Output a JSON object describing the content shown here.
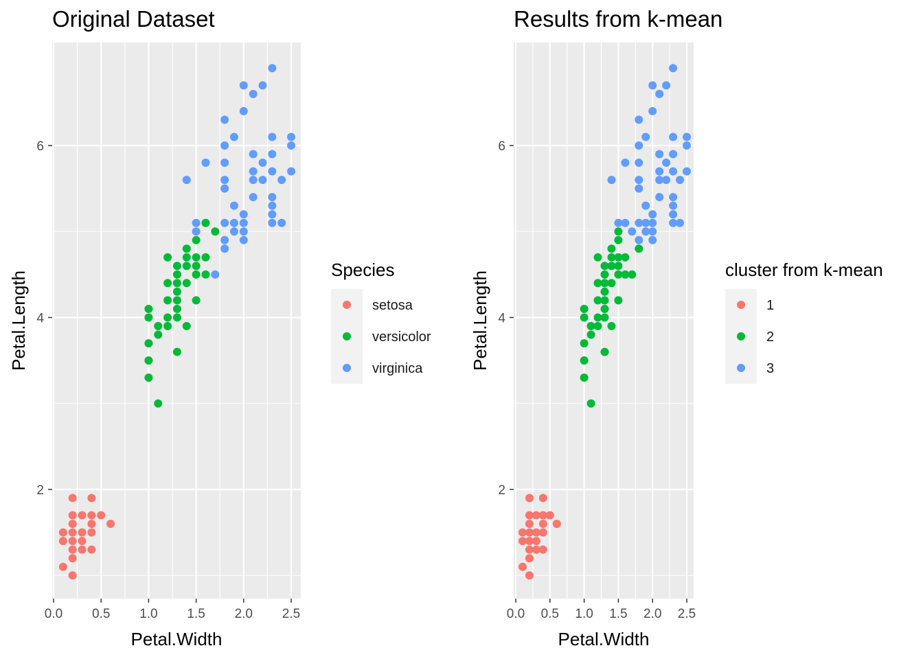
{
  "chart_data": [
    {
      "type": "scatter",
      "title": "Original Dataset",
      "xlabel": "Petal.Width",
      "ylabel": "Petal.Length",
      "xlim": [
        0.0,
        2.5
      ],
      "ylim": [
        1.0,
        6.9
      ],
      "xticks": [
        "0.0",
        "0.5",
        "1.0",
        "1.5",
        "2.0",
        "2.5"
      ],
      "yticks": [
        "2",
        "4",
        "6"
      ],
      "grid": true,
      "legend": {
        "title": "Species",
        "position": "right",
        "entries": [
          {
            "label": "setosa",
            "color": "#F8766D"
          },
          {
            "label": "versicolor",
            "color": "#00BA38"
          },
          {
            "label": "virginica",
            "color": "#619CFF"
          }
        ]
      },
      "series": [
        {
          "name": "setosa",
          "color": "#F8766D",
          "points": [
            [
              0.1,
              1.1
            ],
            [
              0.1,
              1.4
            ],
            [
              0.1,
              1.5
            ],
            [
              0.2,
              1.0
            ],
            [
              0.2,
              1.2
            ],
            [
              0.2,
              1.3
            ],
            [
              0.2,
              1.4
            ],
            [
              0.2,
              1.5
            ],
            [
              0.2,
              1.6
            ],
            [
              0.2,
              1.7
            ],
            [
              0.2,
              1.9
            ],
            [
              0.3,
              1.3
            ],
            [
              0.3,
              1.4
            ],
            [
              0.3,
              1.5
            ],
            [
              0.3,
              1.7
            ],
            [
              0.4,
              1.3
            ],
            [
              0.4,
              1.5
            ],
            [
              0.4,
              1.6
            ],
            [
              0.4,
              1.7
            ],
            [
              0.4,
              1.9
            ],
            [
              0.5,
              1.7
            ],
            [
              0.6,
              1.6
            ]
          ]
        },
        {
          "name": "versicolor",
          "color": "#00BA38",
          "points": [
            [
              1.0,
              3.3
            ],
            [
              1.0,
              3.5
            ],
            [
              1.0,
              3.7
            ],
            [
              1.0,
              4.0
            ],
            [
              1.0,
              4.1
            ],
            [
              1.1,
              3.0
            ],
            [
              1.1,
              3.8
            ],
            [
              1.1,
              3.9
            ],
            [
              1.2,
              3.9
            ],
            [
              1.2,
              4.0
            ],
            [
              1.2,
              4.2
            ],
            [
              1.2,
              4.4
            ],
            [
              1.2,
              4.7
            ],
            [
              1.3,
              3.6
            ],
            [
              1.3,
              4.0
            ],
            [
              1.3,
              4.1
            ],
            [
              1.3,
              4.2
            ],
            [
              1.3,
              4.3
            ],
            [
              1.3,
              4.4
            ],
            [
              1.3,
              4.5
            ],
            [
              1.3,
              4.6
            ],
            [
              1.4,
              3.9
            ],
            [
              1.4,
              4.4
            ],
            [
              1.4,
              4.6
            ],
            [
              1.4,
              4.7
            ],
            [
              1.4,
              4.8
            ],
            [
              1.5,
              4.2
            ],
            [
              1.5,
              4.5
            ],
            [
              1.5,
              4.6
            ],
            [
              1.5,
              4.7
            ],
            [
              1.5,
              4.9
            ],
            [
              1.6,
              4.5
            ],
            [
              1.6,
              4.7
            ],
            [
              1.6,
              5.1
            ],
            [
              1.7,
              5.0
            ]
          ]
        },
        {
          "name": "virginica",
          "color": "#619CFF",
          "points": [
            [
              1.4,
              5.6
            ],
            [
              1.5,
              5.0
            ],
            [
              1.5,
              5.1
            ],
            [
              1.6,
              5.8
            ],
            [
              1.7,
              4.5
            ],
            [
              1.8,
              4.8
            ],
            [
              1.8,
              4.9
            ],
            [
              1.8,
              5.1
            ],
            [
              1.8,
              5.5
            ],
            [
              1.8,
              5.6
            ],
            [
              1.8,
              5.8
            ],
            [
              1.8,
              6.0
            ],
            [
              1.8,
              6.3
            ],
            [
              1.9,
              5.0
            ],
            [
              1.9,
              5.1
            ],
            [
              1.9,
              5.3
            ],
            [
              1.9,
              6.1
            ],
            [
              2.0,
              4.9
            ],
            [
              2.0,
              5.0
            ],
            [
              2.0,
              5.1
            ],
            [
              2.0,
              5.2
            ],
            [
              2.0,
              6.4
            ],
            [
              2.0,
              6.7
            ],
            [
              2.1,
              5.4
            ],
            [
              2.1,
              5.6
            ],
            [
              2.1,
              5.7
            ],
            [
              2.1,
              5.9
            ],
            [
              2.1,
              6.6
            ],
            [
              2.2,
              5.6
            ],
            [
              2.2,
              5.8
            ],
            [
              2.2,
              6.7
            ],
            [
              2.3,
              5.1
            ],
            [
              2.3,
              5.2
            ],
            [
              2.3,
              5.3
            ],
            [
              2.3,
              5.4
            ],
            [
              2.3,
              5.7
            ],
            [
              2.3,
              5.9
            ],
            [
              2.3,
              6.1
            ],
            [
              2.3,
              6.9
            ],
            [
              2.4,
              5.1
            ],
            [
              2.4,
              5.6
            ],
            [
              2.5,
              5.7
            ],
            [
              2.5,
              6.0
            ],
            [
              2.5,
              6.1
            ]
          ]
        }
      ]
    },
    {
      "type": "scatter",
      "title": "Results from k-mean",
      "xlabel": "Petal.Width",
      "ylabel": "Petal.Length",
      "xlim": [
        0.0,
        2.5
      ],
      "ylim": [
        1.0,
        6.9
      ],
      "xticks": [
        "0.0",
        "0.5",
        "1.0",
        "1.5",
        "2.0",
        "2.5"
      ],
      "yticks": [
        "2",
        "4",
        "6"
      ],
      "grid": true,
      "legend": {
        "title": "cluster from k-mean",
        "position": "right",
        "entries": [
          {
            "label": "1",
            "color": "#F8766D"
          },
          {
            "label": "2",
            "color": "#00BA38"
          },
          {
            "label": "3",
            "color": "#619CFF"
          }
        ]
      },
      "series": [
        {
          "name": "1",
          "color": "#F8766D",
          "points": [
            [
              0.1,
              1.1
            ],
            [
              0.1,
              1.4
            ],
            [
              0.1,
              1.5
            ],
            [
              0.2,
              1.0
            ],
            [
              0.2,
              1.2
            ],
            [
              0.2,
              1.3
            ],
            [
              0.2,
              1.4
            ],
            [
              0.2,
              1.5
            ],
            [
              0.2,
              1.6
            ],
            [
              0.2,
              1.7
            ],
            [
              0.2,
              1.9
            ],
            [
              0.3,
              1.3
            ],
            [
              0.3,
              1.4
            ],
            [
              0.3,
              1.5
            ],
            [
              0.3,
              1.7
            ],
            [
              0.4,
              1.3
            ],
            [
              0.4,
              1.5
            ],
            [
              0.4,
              1.6
            ],
            [
              0.4,
              1.7
            ],
            [
              0.4,
              1.9
            ],
            [
              0.5,
              1.7
            ],
            [
              0.6,
              1.6
            ]
          ]
        },
        {
          "name": "2",
          "color": "#00BA38",
          "points": [
            [
              1.0,
              3.3
            ],
            [
              1.0,
              3.5
            ],
            [
              1.0,
              3.7
            ],
            [
              1.0,
              4.0
            ],
            [
              1.0,
              4.1
            ],
            [
              1.1,
              3.0
            ],
            [
              1.1,
              3.8
            ],
            [
              1.1,
              3.9
            ],
            [
              1.2,
              3.9
            ],
            [
              1.2,
              4.0
            ],
            [
              1.2,
              4.2
            ],
            [
              1.2,
              4.4
            ],
            [
              1.2,
              4.7
            ],
            [
              1.3,
              3.6
            ],
            [
              1.3,
              4.0
            ],
            [
              1.3,
              4.1
            ],
            [
              1.3,
              4.2
            ],
            [
              1.3,
              4.3
            ],
            [
              1.3,
              4.4
            ],
            [
              1.3,
              4.5
            ],
            [
              1.3,
              4.6
            ],
            [
              1.4,
              3.9
            ],
            [
              1.4,
              4.4
            ],
            [
              1.4,
              4.6
            ],
            [
              1.4,
              4.7
            ],
            [
              1.4,
              4.8
            ],
            [
              1.5,
              4.2
            ],
            [
              1.5,
              4.5
            ],
            [
              1.5,
              4.6
            ],
            [
              1.5,
              4.7
            ],
            [
              1.5,
              4.9
            ],
            [
              1.5,
              5.0
            ],
            [
              1.6,
              4.5
            ],
            [
              1.6,
              4.7
            ],
            [
              1.7,
              4.5
            ],
            [
              1.8,
              4.8
            ]
          ]
        },
        {
          "name": "3",
          "color": "#619CFF",
          "points": [
            [
              1.4,
              5.6
            ],
            [
              1.5,
              5.1
            ],
            [
              1.6,
              5.1
            ],
            [
              1.6,
              5.8
            ],
            [
              1.7,
              5.0
            ],
            [
              1.8,
              4.9
            ],
            [
              1.8,
              5.1
            ],
            [
              1.8,
              5.5
            ],
            [
              1.8,
              5.6
            ],
            [
              1.8,
              5.8
            ],
            [
              1.8,
              6.0
            ],
            [
              1.8,
              6.3
            ],
            [
              1.9,
              5.0
            ],
            [
              1.9,
              5.1
            ],
            [
              1.9,
              5.3
            ],
            [
              1.9,
              6.1
            ],
            [
              2.0,
              4.9
            ],
            [
              2.0,
              5.0
            ],
            [
              2.0,
              5.1
            ],
            [
              2.0,
              5.2
            ],
            [
              2.0,
              6.4
            ],
            [
              2.0,
              6.7
            ],
            [
              2.1,
              5.4
            ],
            [
              2.1,
              5.6
            ],
            [
              2.1,
              5.7
            ],
            [
              2.1,
              5.9
            ],
            [
              2.1,
              6.6
            ],
            [
              2.2,
              5.6
            ],
            [
              2.2,
              5.8
            ],
            [
              2.2,
              6.7
            ],
            [
              2.3,
              5.1
            ],
            [
              2.3,
              5.2
            ],
            [
              2.3,
              5.3
            ],
            [
              2.3,
              5.4
            ],
            [
              2.3,
              5.7
            ],
            [
              2.3,
              5.9
            ],
            [
              2.3,
              6.1
            ],
            [
              2.3,
              6.9
            ],
            [
              2.4,
              5.1
            ],
            [
              2.4,
              5.6
            ],
            [
              2.5,
              5.7
            ],
            [
              2.5,
              6.0
            ],
            [
              2.5,
              6.1
            ]
          ]
        }
      ]
    }
  ]
}
